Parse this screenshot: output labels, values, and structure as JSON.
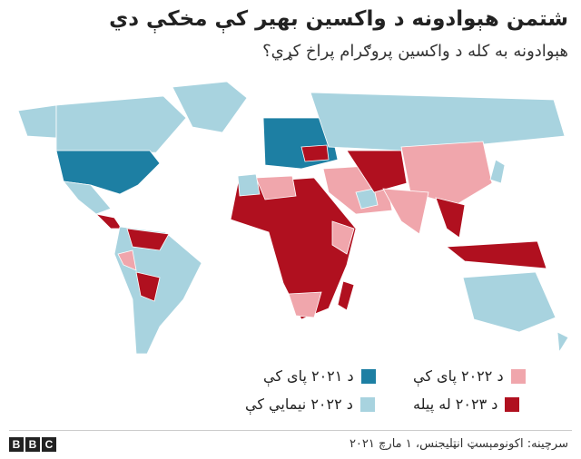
{
  "header": {
    "title": "شتمن هېوادونه د واکسين بهير کې مخکې دي",
    "subtitle": "هېوادونه به کله د واکسين پروګرام پراخ کړي؟"
  },
  "legend": [
    {
      "label": "د ۲۰۲۱ پای کې",
      "color": "#1d7fa3"
    },
    {
      "label": "د ۲۰۲۲ پای کې",
      "color": "#f0a6ac"
    },
    {
      "label": "د ۲۰۲۲ نیمايي کې",
      "color": "#a8d3df"
    },
    {
      "label": "د ۲۰۲۳ له پیله",
      "color": "#b0101f"
    }
  ],
  "footer": {
    "source": "سرچینه: اکونومېسټ انټلیجنس، ۱ مارچ ۲۰۲۱",
    "logo": [
      "B",
      "B",
      "C"
    ]
  }
}
